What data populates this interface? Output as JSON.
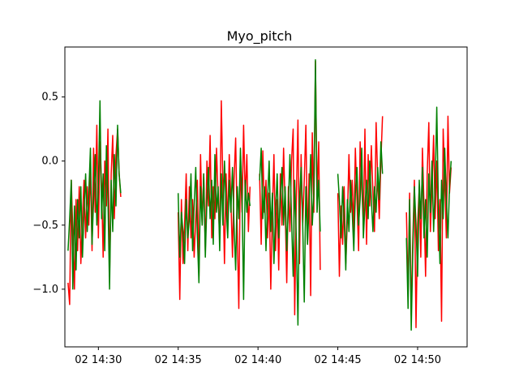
{
  "chart_data": {
    "type": "line",
    "title": "Myo_pitch",
    "xlabel": "",
    "ylabel": "",
    "grid": false,
    "legend": "none",
    "x_tick_labels": [
      "02 14:30",
      "02 14:35",
      "02 14:40",
      "02 14:45",
      "02 14:50"
    ],
    "x_tick_values": [
      "14:30",
      "14:35",
      "14:40",
      "14:45",
      "14:50"
    ],
    "y_tick_labels": [
      "0.5",
      "0.0",
      "−0.5",
      "−1.0"
    ],
    "y_tick_values": [
      0.5,
      0.0,
      -0.5,
      -1.0
    ],
    "xlim": [
      "14:27.9",
      "14:53.1"
    ],
    "ylim": [
      -1.45,
      0.89
    ],
    "series": [
      {
        "color": "#ff0000",
        "segments": [
          {
            "x": [
              "14:28.1",
              "14:28.2",
              "14:28.3",
              "14:28.4",
              "14:28.5",
              "14:28.6",
              "14:28.7",
              "14:28.8",
              "14:28.9",
              "14:29.0",
              "14:29.1",
              "14:29.2",
              "14:29.3",
              "14:29.4",
              "14:29.5",
              "14:29.6",
              "14:29.7",
              "14:29.8",
              "14:29.9",
              "14:30.0",
              "14:30.1",
              "14:30.2",
              "14:30.3",
              "14:30.4",
              "14:30.5",
              "14:30.6",
              "14:30.7",
              "14:30.8",
              "14:30.9",
              "14:31.0",
              "14:31.1",
              "14:31.2",
              "14:31.3",
              "14:31.4"
            ],
            "y": [
              -0.95,
              -1.12,
              -0.15,
              -0.55,
              -1.0,
              -0.3,
              -0.7,
              -0.2,
              -0.8,
              -0.45,
              -0.15,
              -0.6,
              -0.2,
              -0.5,
              -0.05,
              -0.7,
              0.1,
              -0.4,
              0.28,
              -0.6,
              0.15,
              -0.2,
              -0.75,
              0.0,
              -0.35,
              0.25,
              -0.9,
              -0.1,
              0.2,
              -0.45,
              0.05,
              0.25,
              -0.1,
              -0.28
            ]
          },
          {
            "x": [
              "14:35.0",
              "14:35.1",
              "14:35.2",
              "14:35.3",
              "14:35.4",
              "14:35.5",
              "14:35.6",
              "14:35.7",
              "14:35.8",
              "14:35.9",
              "14:36.0",
              "14:36.1",
              "14:36.2",
              "14:36.3",
              "14:36.4",
              "14:36.5",
              "14:36.6",
              "14:36.7",
              "14:36.8",
              "14:36.9",
              "14:37.0",
              "14:37.1",
              "14:37.2",
              "14:37.3",
              "14:37.4",
              "14:37.5",
              "14:37.6",
              "14:37.7",
              "14:37.8",
              "14:37.9",
              "14:38.0",
              "14:38.1",
              "14:38.2",
              "14:38.3",
              "14:38.4",
              "14:38.5",
              "14:38.6",
              "14:38.7",
              "14:38.8",
              "14:38.9",
              "14:39.0",
              "14:39.1",
              "14:39.2",
              "14:39.3",
              "14:39.4",
              "14:39.5"
            ],
            "y": [
              -0.4,
              -1.08,
              -0.3,
              -0.8,
              -0.5,
              -0.1,
              -0.7,
              -0.2,
              -0.6,
              -0.3,
              -0.75,
              -0.45,
              -0.15,
              -0.9,
              0.05,
              -0.5,
              -0.1,
              -0.7,
              0.0,
              -0.35,
              0.2,
              -0.6,
              -0.2,
              -0.45,
              0.1,
              -0.3,
              -0.6,
              0.47,
              -0.2,
              -0.8,
              -0.1,
              -0.5,
              0.05,
              -0.3,
              -0.75,
              -0.15,
              0.18,
              -0.55,
              -1.15,
              0.0,
              -0.4,
              0.28,
              -0.3,
              0.05,
              -0.55,
              -0.2
            ]
          },
          {
            "x": [
              "14:40.1",
              "14:40.2",
              "14:40.3",
              "14:40.4",
              "14:40.5",
              "14:40.6",
              "14:40.7",
              "14:40.8",
              "14:40.9",
              "14:41.0",
              "14:41.1",
              "14:41.2",
              "14:41.3",
              "14:41.4",
              "14:41.5",
              "14:41.6",
              "14:41.7",
              "14:41.8",
              "14:41.9",
              "14:42.0",
              "14:42.1",
              "14:42.2",
              "14:42.3",
              "14:42.4",
              "14:42.5",
              "14:42.6",
              "14:42.7",
              "14:42.8",
              "14:42.9",
              "14:43.0",
              "14:43.1",
              "14:43.2",
              "14:43.3",
              "14:43.4",
              "14:43.5",
              "14:43.6",
              "14:43.7",
              "14:43.8",
              "14:43.9"
            ],
            "y": [
              -0.1,
              -0.65,
              0.08,
              -0.4,
              -0.15,
              -0.6,
              -0.25,
              -1.0,
              -0.4,
              0.05,
              -0.7,
              -0.3,
              -0.85,
              -0.1,
              -0.5,
              0.1,
              -0.35,
              -0.95,
              -0.2,
              -0.55,
              0.0,
              0.25,
              -1.2,
              -0.3,
              0.32,
              -0.8,
              0.05,
              -0.5,
              -0.15,
              0.28,
              -0.65,
              -0.1,
              -1.05,
              0.22,
              -0.4,
              0.78,
              -0.3,
              0.15,
              -0.85
            ]
          },
          {
            "x": [
              "14:45.0",
              "14:45.1",
              "14:45.2",
              "14:45.3",
              "14:45.4",
              "14:45.5",
              "14:45.6",
              "14:45.7",
              "14:45.8",
              "14:45.9",
              "14:46.0",
              "14:46.1",
              "14:46.2",
              "14:46.3",
              "14:46.4",
              "14:46.5",
              "14:46.6",
              "14:46.7",
              "14:46.8",
              "14:46.9",
              "14:47.0",
              "14:47.1",
              "14:47.2",
              "14:47.3",
              "14:47.4",
              "14:47.5",
              "14:47.6",
              "14:47.7",
              "14:47.8"
            ],
            "y": [
              -0.25,
              -0.9,
              -0.35,
              -0.65,
              -0.2,
              -0.8,
              -0.45,
              0.05,
              -0.4,
              -0.15,
              -0.55,
              0.1,
              -0.3,
              -0.7,
              0.15,
              -0.2,
              -0.5,
              0.25,
              -0.65,
              0.05,
              -0.35,
              0.12,
              -0.25,
              -0.55,
              0.3,
              -0.15,
              -0.45,
              0.0,
              0.35
            ]
          },
          {
            "x": [
              "14:49.3",
              "14:49.4",
              "14:49.5",
              "14:49.6",
              "14:49.7",
              "14:49.8",
              "14:49.9",
              "14:50.0",
              "14:50.1",
              "14:50.2",
              "14:50.3",
              "14:50.4",
              "14:50.5",
              "14:50.6",
              "14:50.7",
              "14:50.8",
              "14:50.9",
              "14:51.0",
              "14:51.1",
              "14:51.2",
              "14:51.3",
              "14:51.4",
              "14:51.5",
              "14:51.6",
              "14:51.7",
              "14:51.8",
              "14:51.9",
              "14:52.0",
              "14:52.1"
            ],
            "y": [
              -0.4,
              -1.05,
              -0.25,
              -1.2,
              -0.6,
              -0.15,
              -1.3,
              -0.5,
              -0.2,
              -0.75,
              0.1,
              -0.35,
              -0.9,
              -0.1,
              0.3,
              -0.55,
              -0.2,
              0.2,
              -0.45,
              0.0,
              -0.7,
              -0.3,
              -1.25,
              0.25,
              -0.15,
              -0.6,
              0.35,
              -0.25,
              -0.05
            ]
          }
        ]
      },
      {
        "color": "#008000",
        "segments": [
          {
            "x": [
              "14:28.1",
              "14:28.2",
              "14:28.3",
              "14:28.4",
              "14:28.5",
              "14:28.6",
              "14:28.7",
              "14:28.8",
              "14:28.9",
              "14:29.0",
              "14:29.1",
              "14:29.2",
              "14:29.3",
              "14:29.4",
              "14:29.5",
              "14:29.6",
              "14:29.7",
              "14:29.8",
              "14:29.9",
              "14:30.0",
              "14:30.1",
              "14:30.2",
              "14:30.3",
              "14:30.4",
              "14:30.5",
              "14:30.6",
              "14:30.7",
              "14:30.8",
              "14:30.9",
              "14:31.0",
              "14:31.1",
              "14:31.2",
              "14:31.3",
              "14:31.4"
            ],
            "y": [
              -0.7,
              -0.45,
              -0.15,
              -1.0,
              -0.35,
              -0.85,
              -0.3,
              -0.6,
              -0.2,
              -0.75,
              -0.4,
              -0.1,
              -0.55,
              -0.25,
              0.1,
              -0.65,
              -0.3,
              0.05,
              -0.5,
              -0.2,
              0.47,
              -0.45,
              -0.1,
              -0.7,
              0.12,
              -0.3,
              -1.0,
              -0.15,
              -0.55,
              0.05,
              -0.35,
              0.28,
              -0.1,
              -0.25
            ]
          },
          {
            "x": [
              "14:35.0",
              "14:35.1",
              "14:35.2",
              "14:35.3",
              "14:35.4",
              "14:35.5",
              "14:35.6",
              "14:35.7",
              "14:35.8",
              "14:35.9",
              "14:36.0",
              "14:36.1",
              "14:36.2",
              "14:36.3",
              "14:36.4",
              "14:36.5",
              "14:36.6",
              "14:36.7",
              "14:36.8",
              "14:36.9",
              "14:37.0",
              "14:37.1",
              "14:37.2",
              "14:37.3",
              "14:37.4",
              "14:37.5",
              "14:37.6",
              "14:37.7",
              "14:37.8",
              "14:37.9",
              "14:38.0",
              "14:38.1",
              "14:38.2",
              "14:38.3",
              "14:38.4",
              "14:38.5",
              "14:38.6",
              "14:38.7",
              "14:38.8",
              "14:38.9",
              "14:39.0",
              "14:39.1",
              "14:39.2",
              "14:39.3",
              "14:39.4",
              "14:39.5"
            ],
            "y": [
              -0.25,
              -0.75,
              -0.4,
              -0.55,
              -0.8,
              -0.3,
              -0.6,
              -0.45,
              -0.1,
              -0.7,
              -0.35,
              -0.05,
              -0.6,
              -0.95,
              -0.2,
              -0.5,
              -0.1,
              -0.75,
              -0.3,
              -0.05,
              -0.45,
              -0.15,
              -0.65,
              0.05,
              -0.4,
              -0.2,
              -0.7,
              -0.1,
              -0.5,
              0.0,
              -0.35,
              -0.6,
              -0.15,
              -0.4,
              -0.05,
              -0.5,
              -0.85,
              -0.2,
              -0.45,
              0.1,
              -0.3,
              -1.08,
              -0.15,
              -0.4,
              -0.25,
              -0.35
            ]
          },
          {
            "x": [
              "14:40.1",
              "14:40.2",
              "14:40.3",
              "14:40.4",
              "14:40.5",
              "14:40.6",
              "14:40.7",
              "14:40.8",
              "14:40.9",
              "14:41.0",
              "14:41.1",
              "14:41.2",
              "14:41.3",
              "14:41.4",
              "14:41.5",
              "14:41.6",
              "14:41.7",
              "14:41.8",
              "14:41.9",
              "14:42.0",
              "14:42.1",
              "14:42.2",
              "14:42.3",
              "14:42.4",
              "14:42.5",
              "14:42.6",
              "14:42.7",
              "14:42.8",
              "14:42.9",
              "14:43.0",
              "14:43.1",
              "14:43.2",
              "14:43.3",
              "14:43.4",
              "14:43.5",
              "14:43.6",
              "14:43.7",
              "14:43.8",
              "14:43.9"
            ],
            "y": [
              -0.15,
              0.1,
              -0.45,
              -0.2,
              -0.7,
              -0.3,
              0.0,
              -0.55,
              -0.25,
              -0.8,
              -0.4,
              -0.1,
              -0.6,
              -0.3,
              -0.05,
              -0.5,
              -0.2,
              -0.7,
              -0.35,
              0.05,
              -0.45,
              -0.9,
              -0.15,
              -0.6,
              -1.28,
              -0.3,
              -0.05,
              -0.5,
              -1.1,
              -0.2,
              -0.65,
              -0.35,
              0.05,
              -0.5,
              -0.25,
              0.79,
              -0.4,
              -0.15,
              -0.55
            ]
          },
          {
            "x": [
              "14:45.0",
              "14:45.1",
              "14:45.2",
              "14:45.3",
              "14:45.4",
              "14:45.5",
              "14:45.6",
              "14:45.7",
              "14:45.8",
              "14:45.9",
              "14:46.0",
              "14:46.1",
              "14:46.2",
              "14:46.3",
              "14:46.4",
              "14:46.5",
              "14:46.6",
              "14:46.7",
              "14:46.8",
              "14:46.9",
              "14:47.0",
              "14:47.1",
              "14:47.2",
              "14:47.3",
              "14:47.4",
              "14:47.5",
              "14:47.6",
              "14:47.7",
              "14:47.8"
            ],
            "y": [
              -0.1,
              -0.3,
              -0.6,
              -0.2,
              -0.45,
              -0.85,
              -0.3,
              -0.55,
              -0.15,
              -0.4,
              -0.7,
              -0.25,
              -0.05,
              -0.5,
              -0.3,
              0.1,
              -0.6,
              -0.35,
              -0.15,
              -0.45,
              0.0,
              -0.3,
              -0.55,
              -0.2,
              -0.4,
              -0.05,
              -0.3,
              0.15,
              -0.1
            ]
          },
          {
            "x": [
              "14:49.3",
              "14:49.4",
              "14:49.5",
              "14:49.6",
              "14:49.7",
              "14:49.8",
              "14:49.9",
              "14:50.0",
              "14:50.1",
              "14:50.2",
              "14:50.3",
              "14:50.4",
              "14:50.5",
              "14:50.6",
              "14:50.7",
              "14:50.8",
              "14:50.9",
              "14:51.0",
              "14:51.1",
              "14:51.2",
              "14:51.3",
              "14:51.4",
              "14:51.5",
              "14:51.6",
              "14:51.7",
              "14:51.8",
              "14:51.9",
              "14:52.0",
              "14:52.1"
            ],
            "y": [
              -0.6,
              -1.15,
              -0.3,
              -1.32,
              -0.7,
              -0.2,
              -0.5,
              -0.9,
              -0.15,
              -0.45,
              -0.05,
              -0.6,
              -0.3,
              -0.75,
              -0.1,
              -0.4,
              0.0,
              -0.55,
              -0.2,
              0.42,
              -0.35,
              -0.8,
              -0.15,
              -0.45,
              0.1,
              -0.3,
              -0.6,
              -0.2,
              0.0
            ]
          }
        ]
      }
    ]
  }
}
